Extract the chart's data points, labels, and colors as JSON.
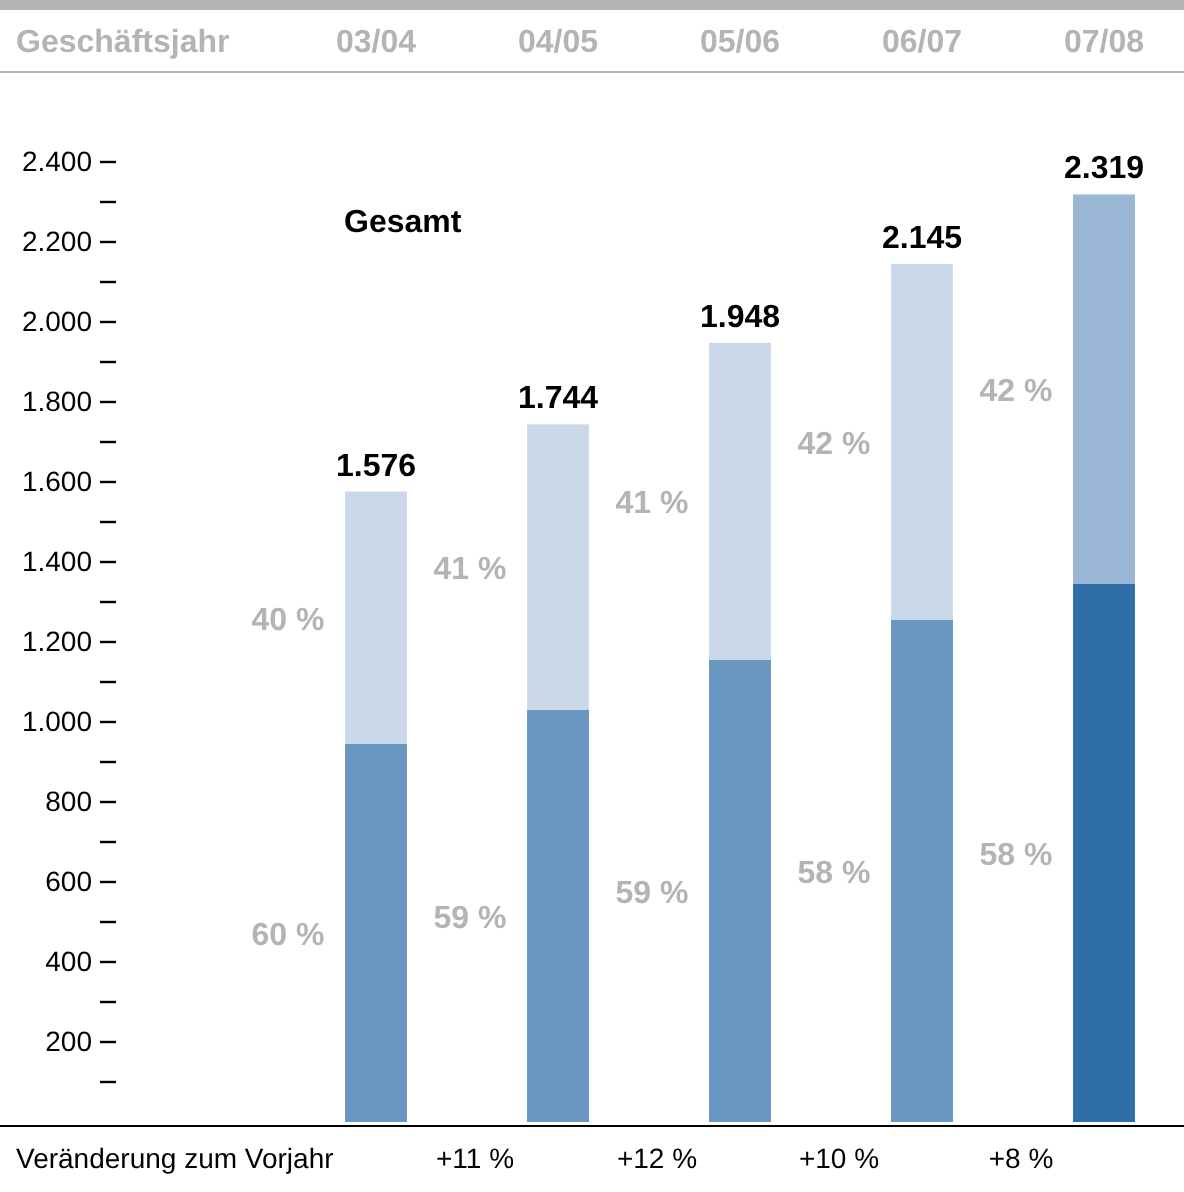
{
  "chart_data": {
    "type": "bar",
    "stacked": true,
    "xlabel": "Geschäftsjahr",
    "categories": [
      "03/04",
      "04/05",
      "05/06",
      "06/07",
      "07/08"
    ],
    "series": [
      {
        "values": [
          945,
          1030,
          1155,
          1255,
          1345
        ],
        "colors": [
          "#6a96c2",
          "#6a96c2",
          "#6a96c2",
          "#6a96c2",
          "#2f6ea8"
        ]
      },
      {
        "values": [
          631,
          714,
          793,
          890,
          974
        ],
        "colors": [
          "#c9d9ea",
          "#c9d9ea",
          "#c9d9ea",
          "#c9d9ea",
          "#9ab8d6"
        ]
      }
    ],
    "totals": [
      "1.576",
      "1.744",
      "1.948",
      "2.145",
      "2.319"
    ],
    "ylim": [
      0,
      2400
    ],
    "yticks": [
      200,
      400,
      600,
      800,
      {
        "value": 1000,
        "label": "1.000"
      },
      {
        "value": 1200,
        "label": "1.200"
      },
      {
        "value": 1400,
        "label": "1.400"
      },
      {
        "value": 1600,
        "label": "1.600"
      },
      {
        "value": 1800,
        "label": "1.800"
      },
      {
        "value": 2000,
        "label": "2.000"
      },
      {
        "value": 2200,
        "label": "2.200"
      },
      {
        "value": 2400,
        "label": "2.400"
      }
    ],
    "annotations": [
      "Gesamt",
      "Veränderung zum Vorjahr",
      "+11 %",
      "+12 %",
      "+10 %",
      "+8 %",
      "60 %",
      "59 %",
      "59 %",
      "58 %",
      "58 %",
      "40 %",
      "41 %",
      "41 %",
      "42 %",
      "42 %"
    ]
  }
}
